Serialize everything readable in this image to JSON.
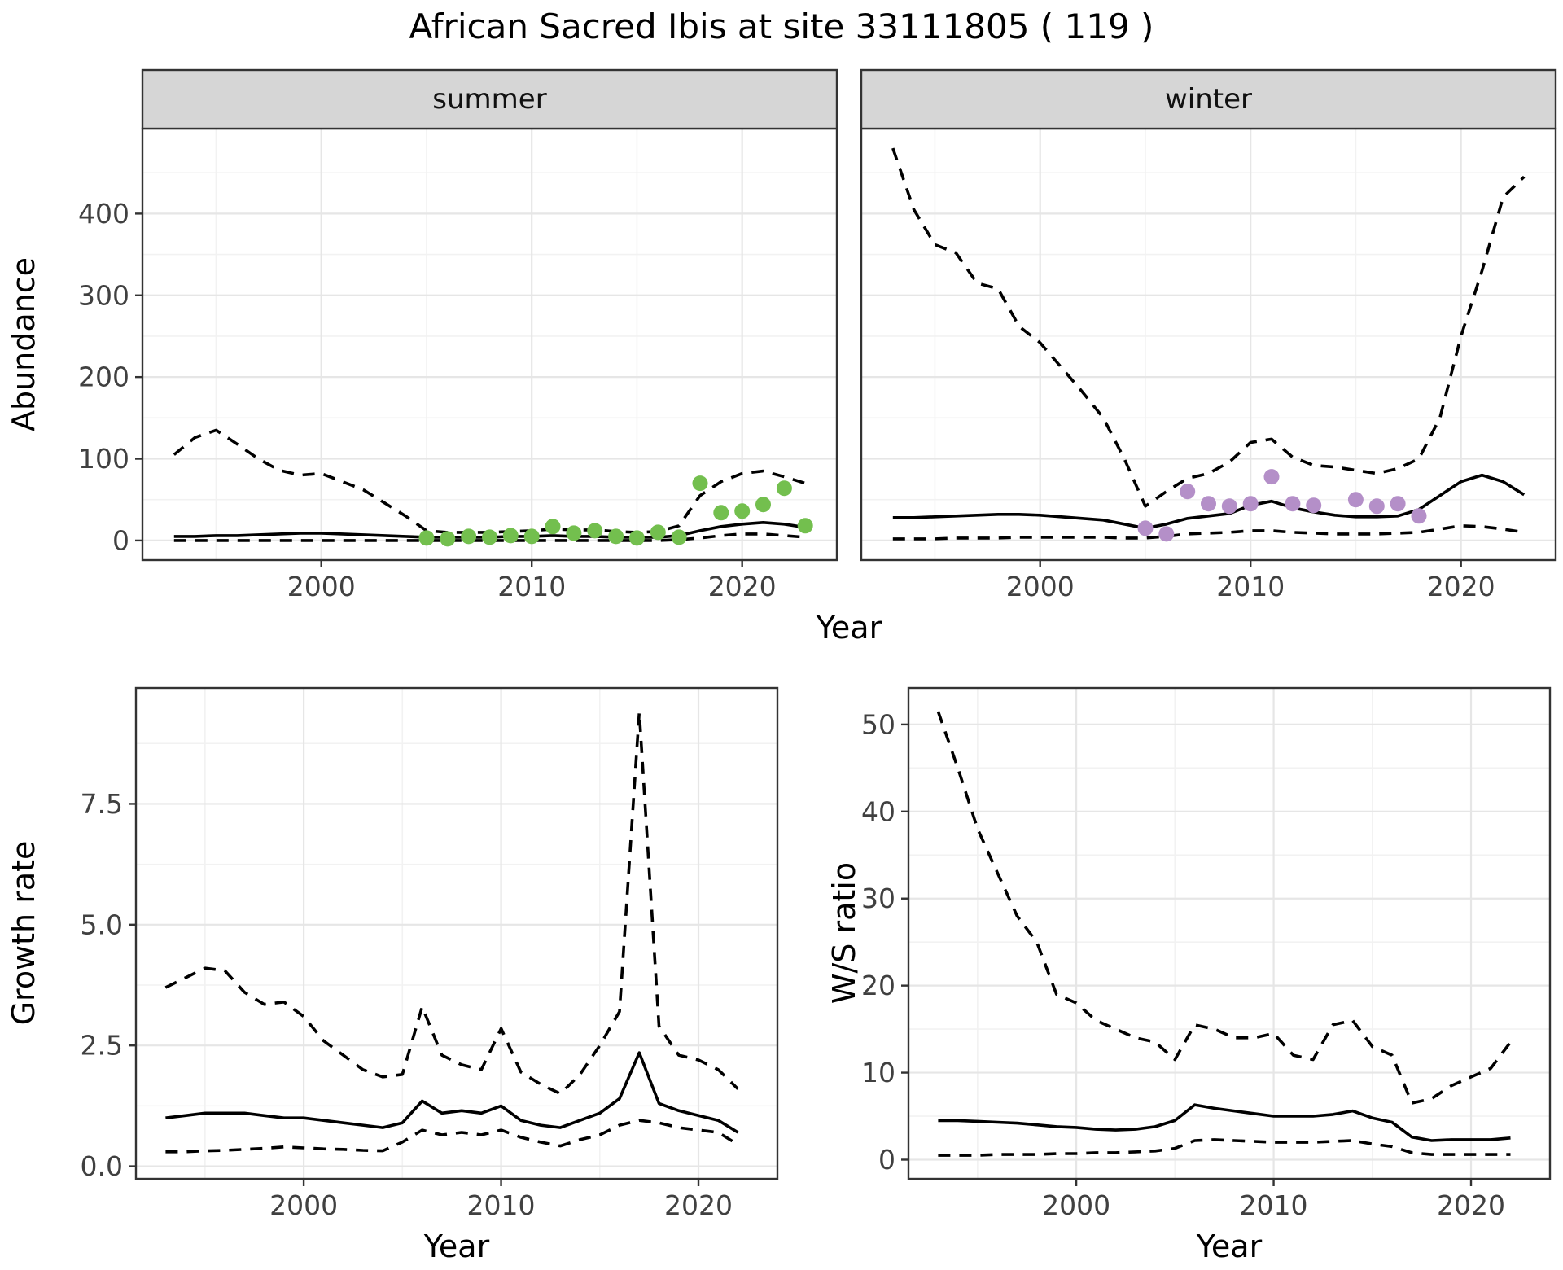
{
  "title": "African Sacred Ibis at site 33111805 ( 119 )",
  "colors": {
    "line": "#000000",
    "summer_point": "#73BF4E",
    "winter_point": "#B48FC8",
    "strip_bg": "#D6D6D6",
    "strip_border": "#333333",
    "panel_border": "#333333",
    "panel_bg": "#FFFFFF",
    "grid_major": "#E6E6E6",
    "grid_minor": "#F2F2F2"
  },
  "chart_data": [
    {
      "id": "abundance-summer",
      "type": "line",
      "facet_label": "summer",
      "xlabel": "Year",
      "ylabel": "Abundance",
      "xlim": [
        1991.5,
        2024.5
      ],
      "ylim": [
        -24,
        504
      ],
      "xticks": {
        "values": [
          2000,
          2010,
          2020
        ],
        "labels": [
          "2000",
          "2010",
          "2020"
        ],
        "minor": [
          1995,
          2005,
          2015
        ]
      },
      "yticks": {
        "values": [
          0,
          100,
          200,
          300,
          400
        ],
        "labels": [
          "0",
          "100",
          "200",
          "300",
          "400"
        ],
        "minor": [
          50,
          150,
          250,
          350,
          450
        ]
      },
      "x": [
        1993,
        1994,
        1995,
        1996,
        1997,
        1998,
        1999,
        2000,
        2001,
        2002,
        2003,
        2004,
        2005,
        2006,
        2007,
        2008,
        2009,
        2010,
        2011,
        2012,
        2013,
        2014,
        2015,
        2016,
        2017,
        2018,
        2019,
        2020,
        2021,
        2022,
        2023
      ],
      "series": [
        {
          "name": "upper-ci",
          "style": "dashed",
          "values": [
            105,
            126,
            135,
            118,
            100,
            86,
            80,
            82,
            72,
            62,
            46,
            30,
            12,
            10,
            10,
            10,
            11,
            12,
            14,
            13,
            13,
            11,
            10,
            11,
            18,
            55,
            72,
            82,
            85,
            78,
            70
          ]
        },
        {
          "name": "median",
          "style": "solid",
          "values": [
            5,
            5,
            6,
            6,
            7,
            8,
            9,
            9,
            8,
            7,
            6,
            5,
            4,
            4,
            4,
            4,
            5,
            5,
            6,
            5,
            5,
            4,
            4,
            4,
            6,
            12,
            17,
            20,
            22,
            20,
            16
          ]
        },
        {
          "name": "lower-ci",
          "style": "dashed",
          "values": [
            0,
            0,
            0,
            0,
            0,
            0,
            0,
            0,
            0,
            0,
            0,
            0,
            0,
            0,
            0,
            0,
            0,
            0,
            0,
            0,
            0,
            0,
            0,
            0,
            1,
            3,
            6,
            8,
            8,
            6,
            4
          ]
        }
      ],
      "points": {
        "name": "observed-counts",
        "color_key": "summer_point",
        "x": [
          2005,
          2006,
          2007,
          2008,
          2009,
          2010,
          2011,
          2012,
          2013,
          2014,
          2015,
          2016,
          2017,
          2018,
          2019,
          2020,
          2021,
          2022,
          2023
        ],
        "y": [
          3,
          2,
          5,
          4,
          6,
          5,
          17,
          9,
          12,
          5,
          3,
          10,
          4,
          70,
          34,
          36,
          44,
          64,
          18
        ]
      }
    },
    {
      "id": "abundance-winter",
      "type": "line",
      "facet_label": "winter",
      "xlabel": "Year",
      "ylabel": "Abundance",
      "xlim": [
        1991.5,
        2024.5
      ],
      "ylim": [
        -24,
        504
      ],
      "xticks": {
        "values": [
          2000,
          2010,
          2020
        ],
        "labels": [
          "2000",
          "2010",
          "2020"
        ],
        "minor": [
          1995,
          2005,
          2015
        ]
      },
      "yticks": {
        "values": [
          0,
          100,
          200,
          300,
          400
        ],
        "labels": [
          "0",
          "100",
          "200",
          "300",
          "400"
        ],
        "minor": [
          50,
          150,
          250,
          350,
          450
        ]
      },
      "x": [
        1993,
        1994,
        1995,
        1996,
        1997,
        1998,
        1999,
        2000,
        2001,
        2002,
        2003,
        2004,
        2005,
        2006,
        2007,
        2008,
        2009,
        2010,
        2011,
        2012,
        2013,
        2014,
        2015,
        2016,
        2017,
        2018,
        2019,
        2020,
        2021,
        2022,
        2023
      ],
      "series": [
        {
          "name": "upper-ci",
          "style": "dashed",
          "values": [
            480,
            405,
            362,
            352,
            315,
            308,
            262,
            242,
            212,
            182,
            150,
            100,
            42,
            60,
            76,
            82,
            96,
            120,
            124,
            102,
            92,
            90,
            86,
            82,
            88,
            100,
            150,
            250,
            330,
            420,
            445
          ]
        },
        {
          "name": "median",
          "style": "solid",
          "values": [
            28,
            28,
            29,
            30,
            31,
            32,
            32,
            31,
            29,
            27,
            25,
            20,
            15,
            20,
            27,
            30,
            33,
            43,
            48,
            40,
            35,
            31,
            29,
            29,
            30,
            38,
            55,
            72,
            80,
            72,
            56
          ]
        },
        {
          "name": "lower-ci",
          "style": "dashed",
          "values": [
            2,
            2,
            2,
            3,
            3,
            3,
            4,
            4,
            4,
            4,
            4,
            3,
            3,
            5,
            8,
            9,
            10,
            12,
            12,
            10,
            9,
            8,
            8,
            8,
            9,
            10,
            14,
            18,
            17,
            14,
            10
          ]
        }
      ],
      "points": {
        "name": "observed-counts",
        "color_key": "winter_point",
        "x": [
          2005,
          2006,
          2007,
          2008,
          2009,
          2010,
          2011,
          2012,
          2013,
          2015,
          2016,
          2017,
          2018
        ],
        "y": [
          15,
          8,
          60,
          45,
          42,
          45,
          78,
          45,
          43,
          50,
          42,
          45,
          30
        ]
      }
    },
    {
      "id": "growth-rate",
      "type": "line",
      "facet_label": null,
      "xlabel": "Year",
      "ylabel": "Growth rate",
      "xlim": [
        1991.5,
        2024
      ],
      "ylim": [
        -0.26,
        9.9
      ],
      "xticks": {
        "values": [
          2000,
          2010,
          2020
        ],
        "labels": [
          "2000",
          "2010",
          "2020"
        ],
        "minor": [
          1995,
          2005,
          2015
        ]
      },
      "yticks": {
        "values": [
          0,
          2.5,
          5,
          7.5
        ],
        "labels": [
          "0.0",
          "2.5",
          "5.0",
          "7.5"
        ],
        "minor": [
          1.25,
          3.75,
          6.25,
          8.75
        ]
      },
      "x": [
        1993,
        1994,
        1995,
        1996,
        1997,
        1998,
        1999,
        2000,
        2001,
        2002,
        2003,
        2004,
        2005,
        2006,
        2007,
        2008,
        2009,
        2010,
        2011,
        2012,
        2013,
        2014,
        2015,
        2016,
        2017,
        2018,
        2019,
        2020,
        2021,
        2022
      ],
      "series": [
        {
          "name": "upper-ci",
          "style": "dashed",
          "values": [
            3.7,
            3.9,
            4.1,
            4.05,
            3.6,
            3.35,
            3.4,
            3.1,
            2.6,
            2.3,
            2.0,
            1.85,
            1.9,
            3.3,
            2.3,
            2.1,
            2.0,
            2.85,
            1.95,
            1.7,
            1.5,
            1.9,
            2.5,
            3.2,
            9.4,
            2.9,
            2.3,
            2.2,
            2.0,
            1.6
          ]
        },
        {
          "name": "median",
          "style": "solid",
          "values": [
            1.0,
            1.05,
            1.1,
            1.1,
            1.1,
            1.05,
            1.0,
            1.0,
            0.95,
            0.9,
            0.85,
            0.8,
            0.9,
            1.35,
            1.1,
            1.15,
            1.1,
            1.25,
            0.95,
            0.85,
            0.8,
            0.95,
            1.1,
            1.4,
            2.35,
            1.3,
            1.15,
            1.05,
            0.95,
            0.7
          ]
        },
        {
          "name": "lower-ci",
          "style": "dashed",
          "values": [
            0.3,
            0.3,
            0.32,
            0.33,
            0.35,
            0.37,
            0.4,
            0.38,
            0.36,
            0.35,
            0.33,
            0.32,
            0.5,
            0.75,
            0.65,
            0.7,
            0.65,
            0.75,
            0.6,
            0.5,
            0.42,
            0.55,
            0.65,
            0.85,
            0.95,
            0.9,
            0.8,
            0.75,
            0.7,
            0.45
          ]
        }
      ],
      "points": null
    },
    {
      "id": "ws-ratio",
      "type": "line",
      "facet_label": null,
      "xlabel": "Year",
      "ylabel": "W/S ratio",
      "xlim": [
        1991.5,
        2024
      ],
      "ylim": [
        -2.2,
        54.2
      ],
      "xticks": {
        "values": [
          2000,
          2010,
          2020
        ],
        "labels": [
          "2000",
          "2010",
          "2020"
        ],
        "minor": [
          1995,
          2005,
          2015
        ]
      },
      "yticks": {
        "values": [
          0,
          10,
          20,
          30,
          40,
          50
        ],
        "labels": [
          "0",
          "10",
          "20",
          "30",
          "40",
          "50"
        ],
        "minor": [
          5,
          15,
          25,
          35,
          45
        ]
      },
      "x": [
        1993,
        1994,
        1995,
        1996,
        1997,
        1998,
        1999,
        2000,
        2001,
        2002,
        2003,
        2004,
        2005,
        2006,
        2007,
        2008,
        2009,
        2010,
        2011,
        2012,
        2013,
        2014,
        2015,
        2016,
        2017,
        2018,
        2019,
        2020,
        2021,
        2022
      ],
      "series": [
        {
          "name": "upper-ci",
          "style": "dashed",
          "values": [
            51.5,
            45,
            38,
            33,
            28,
            25,
            19,
            18,
            16,
            15,
            14,
            13.5,
            11.5,
            15.5,
            15,
            14,
            14,
            14.5,
            12,
            11.5,
            15.5,
            16,
            13,
            12,
            6.5,
            7,
            8.5,
            9.5,
            10.5,
            13.5
          ]
        },
        {
          "name": "median",
          "style": "solid",
          "values": [
            4.5,
            4.5,
            4.4,
            4.3,
            4.2,
            4.0,
            3.8,
            3.7,
            3.5,
            3.4,
            3.5,
            3.8,
            4.5,
            6.3,
            5.9,
            5.6,
            5.3,
            5.0,
            5.0,
            5.0,
            5.2,
            5.6,
            4.8,
            4.3,
            2.6,
            2.2,
            2.3,
            2.3,
            2.3,
            2.5
          ]
        },
        {
          "name": "lower-ci",
          "style": "dashed",
          "values": [
            0.5,
            0.5,
            0.5,
            0.6,
            0.6,
            0.6,
            0.7,
            0.7,
            0.8,
            0.8,
            0.9,
            1.0,
            1.3,
            2.2,
            2.3,
            2.2,
            2.1,
            2.0,
            2.0,
            2.0,
            2.1,
            2.2,
            1.8,
            1.5,
            0.8,
            0.6,
            0.6,
            0.6,
            0.6,
            0.6
          ]
        }
      ],
      "points": null
    }
  ]
}
